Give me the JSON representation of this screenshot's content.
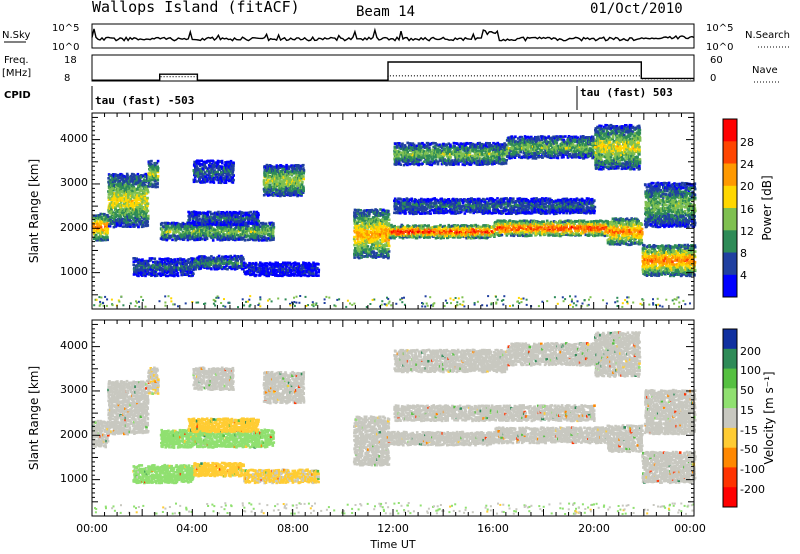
{
  "header": {
    "station": "Wallops Island (fitACF)",
    "beam": "Beam 14",
    "date": "01/Oct/2010"
  },
  "strip": {
    "nsky_label": "N.Sky",
    "nsky_ticks": [
      "10^5",
      "10^0"
    ],
    "nsearch_label": "N.Search",
    "nsearch_ticks": [
      "10^5",
      "10^0"
    ],
    "freq_label": "Freq.",
    "freq_unit": "[MHz]",
    "freq_ticks": [
      "18",
      "8"
    ],
    "nave_label": "Nave",
    "nave_ticks": [
      "60",
      "0"
    ],
    "cpid_label": "CPID",
    "cpid_segments": [
      {
        "label": "tau (fast) -503",
        "start_hour": 0
      },
      {
        "label": "tau (fast) 503",
        "start_hour": 19.1
      }
    ],
    "freq_series": [
      [
        0,
        8.3
      ],
      [
        2.7,
        8.3
      ],
      [
        2.7,
        10.6
      ],
      [
        4.2,
        10.6
      ],
      [
        4.2,
        8.3
      ],
      [
        11.8,
        8.3
      ],
      [
        11.8,
        15.3
      ],
      [
        21.9,
        15.3
      ],
      [
        21.9,
        9.0
      ],
      [
        24,
        9.0
      ]
    ],
    "nave_series": [
      [
        0,
        2
      ],
      [
        2.7,
        2
      ],
      [
        2.7,
        10
      ],
      [
        4.2,
        10
      ],
      [
        4.2,
        2
      ],
      [
        11.8,
        2
      ],
      [
        11.8,
        12
      ],
      [
        21.9,
        12
      ],
      [
        21.9,
        5
      ],
      [
        24,
        5
      ]
    ]
  },
  "panels": {
    "power": {
      "ylabel": "Slant Range [km]",
      "yticks": [
        "1000",
        "2000",
        "3000",
        "4000"
      ],
      "colorbar_title": "Power [dB]",
      "colorbar_ticks": [
        "4",
        "8",
        "12",
        "16",
        "20",
        "24",
        "28"
      ],
      "colors": [
        "#0000ff",
        "#2040a0",
        "#2e8b57",
        "#7fc050",
        "#ffd700",
        "#ff9900",
        "#ff4500",
        "#ff0000"
      ]
    },
    "velocity": {
      "ylabel": "Slant Range [km]",
      "yticks": [
        "1000",
        "2000",
        "3000",
        "4000"
      ],
      "colorbar_title": "Velocity [m s⁻¹]",
      "colorbar_ticks": [
        "200",
        "100",
        "50",
        "15",
        "-15",
        "-50",
        "-100",
        "-200"
      ],
      "colors": [
        "#1030a0",
        "#2e8b57",
        "#55c040",
        "#90e070",
        "#c8c8c0",
        "#ffcc33",
        "#ff8800",
        "#ff3300",
        "#ff0000"
      ]
    }
  },
  "xaxis": {
    "label": "Time UT",
    "ticks": [
      "00:00",
      "04:00",
      "08:00",
      "12:00",
      "16:00",
      "20:00",
      "00:00"
    ]
  },
  "chart_data": {
    "type": "heatmap",
    "title": "Wallops Island (fitACF)",
    "xlabel": "Time UT",
    "ylabel": "Slant Range [km]",
    "xlim_hours": [
      0,
      24
    ],
    "ylim_km": [
      180,
      4600
    ],
    "echo_bands": [
      {
        "t0": 0.0,
        "t1": 0.6,
        "r0": 1700,
        "r1": 2300,
        "power": 24,
        "velocity": -5
      },
      {
        "t0": 0.6,
        "t1": 2.2,
        "r0": 2000,
        "r1": 3200,
        "power": 18,
        "velocity": -5
      },
      {
        "t0": 2.2,
        "t1": 2.6,
        "r0": 2900,
        "r1": 3500,
        "power": 16,
        "velocity": -10
      },
      {
        "t0": 2.7,
        "t1": 7.2,
        "r0": 1700,
        "r1": 2100,
        "power": 14,
        "velocity": 30
      },
      {
        "t0": 3.8,
        "t1": 6.6,
        "r0": 2050,
        "r1": 2350,
        "power": 8,
        "velocity": -40
      },
      {
        "t0": 4.0,
        "t1": 5.6,
        "r0": 3000,
        "r1": 3500,
        "power": 8,
        "velocity": -5
      },
      {
        "t0": 6.8,
        "t1": 8.4,
        "r0": 2700,
        "r1": 3400,
        "power": 16,
        "velocity": -5
      },
      {
        "t0": 1.6,
        "t1": 4.0,
        "r0": 900,
        "r1": 1300,
        "power": 8,
        "velocity": 40
      },
      {
        "t0": 4.0,
        "t1": 6.0,
        "r0": 1050,
        "r1": 1350,
        "power": 10,
        "velocity": -40
      },
      {
        "t0": 6.0,
        "t1": 9.0,
        "r0": 900,
        "r1": 1200,
        "power": 4,
        "velocity": -20
      },
      {
        "t0": 10.4,
        "t1": 11.8,
        "r0": 1300,
        "r1": 2400,
        "power": 22,
        "velocity": -5
      },
      {
        "t0": 11.8,
        "t1": 16.0,
        "r0": 1750,
        "r1": 2050,
        "power": 28,
        "velocity": -5
      },
      {
        "t0": 16.0,
        "t1": 20.5,
        "r0": 1800,
        "r1": 2150,
        "power": 28,
        "velocity": -5
      },
      {
        "t0": 20.5,
        "t1": 21.9,
        "r0": 1600,
        "r1": 2200,
        "power": 24,
        "velocity": -5
      },
      {
        "t0": 12.0,
        "t1": 16.5,
        "r0": 3400,
        "r1": 3900,
        "power": 14,
        "velocity": -5
      },
      {
        "t0": 16.5,
        "t1": 20.2,
        "r0": 3550,
        "r1": 4050,
        "power": 14,
        "velocity": -5
      },
      {
        "t0": 20.0,
        "t1": 21.8,
        "r0": 3300,
        "r1": 4300,
        "power": 18,
        "velocity": -5
      },
      {
        "t0": 12.0,
        "t1": 20.0,
        "r0": 2300,
        "r1": 2650,
        "power": 8,
        "velocity": -5
      },
      {
        "t0": 21.9,
        "t1": 24.0,
        "r0": 900,
        "r1": 1600,
        "power": 24,
        "velocity": -5
      },
      {
        "t0": 22.0,
        "t1": 24.0,
        "r0": 2000,
        "r1": 3000,
        "power": 14,
        "velocity": -5
      }
    ]
  }
}
